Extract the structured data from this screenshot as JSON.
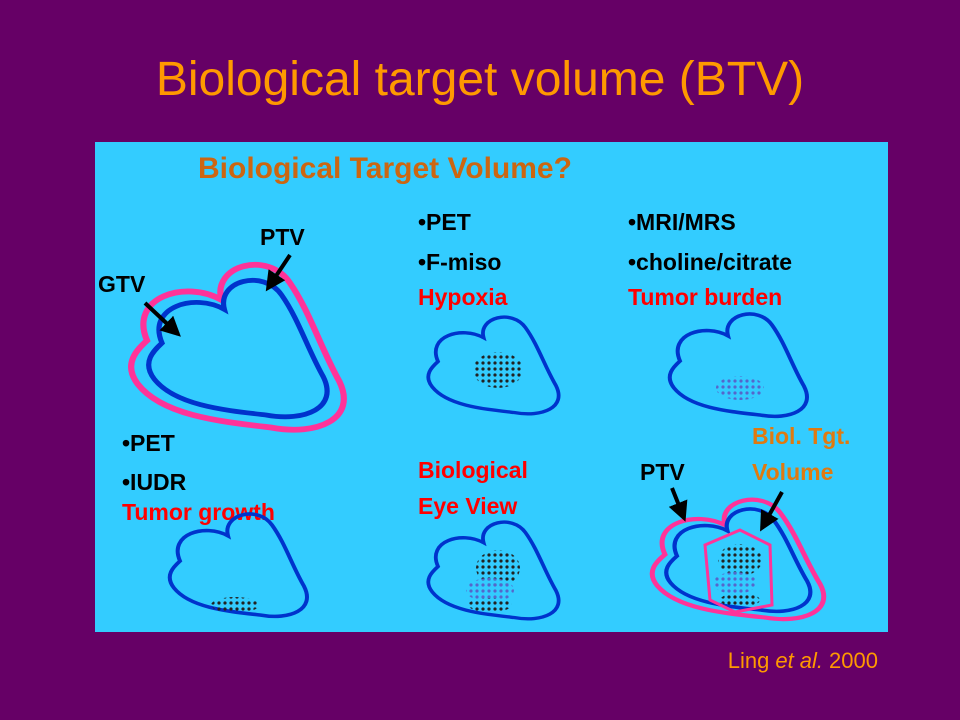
{
  "slide": {
    "title": "Biological target volume (BTV)",
    "citation": {
      "author": "Ling",
      "emphasis": "et al.",
      "year": "2000"
    }
  },
  "figure": {
    "title": "Biological Target Volume?",
    "panels": [
      {
        "labels": [
          "PTV",
          "GTV"
        ]
      },
      {
        "lines": [
          "•PET",
          "•F-miso"
        ],
        "caption": "Hypoxia"
      },
      {
        "lines": [
          "•MRI/MRS",
          "•choline/citrate"
        ],
        "caption": "Tumor burden"
      },
      {
        "lines": [
          "•PET",
          "•IUDR"
        ],
        "caption": "Tumor growth"
      },
      {
        "caption_lines": [
          "Biological",
          "Eye View"
        ]
      },
      {
        "labels": [
          "PTV"
        ],
        "highlight_lines": [
          "Biol. Tgt.",
          "Volume"
        ]
      }
    ]
  }
}
